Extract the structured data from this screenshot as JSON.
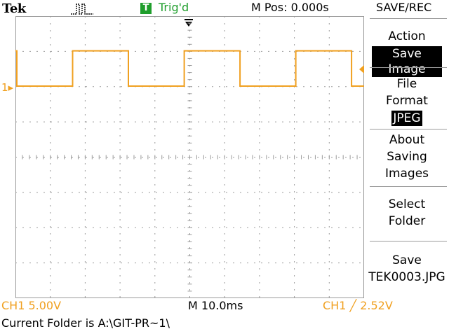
{
  "header": {
    "brand": "Tek",
    "acquisition_icon": "acquire-pulse-icon",
    "trigger_badge": "T",
    "trigger_status": "Trig'd",
    "horizontal_position": "M Pos: 0.000s",
    "menu_title": "SAVE/REC"
  },
  "colors": {
    "channel1": "#f0a020",
    "trigger_ok": "#1f9e2c",
    "graticule": "#9a9a9a",
    "background": "#ffffff"
  },
  "display": {
    "ch1_marker": "1",
    "trigger_position_icon": "trigger-position-arrow-icon",
    "trigger_level_icon": "trigger-level-arrow-icon",
    "waveform": {
      "type": "square",
      "cycles_visible": 3,
      "high_level_div": 1.0,
      "low_level_div": 0,
      "period_div": 3.2,
      "duty_cycle": 0.5
    }
  },
  "side_menu": [
    {
      "label": [
        "Action"
      ],
      "value": "Save Image"
    },
    {
      "label": [
        "File",
        "Format"
      ],
      "value": "JPEG"
    },
    {
      "label": [
        "About",
        "Saving",
        "Images"
      ]
    },
    {
      "label": [
        "Select",
        "Folder"
      ]
    },
    {
      "label": [
        "Save",
        "TEK0003.JPG"
      ]
    }
  ],
  "footer": {
    "ch1_scale": "CH1  5.00V",
    "timebase": "M 10.0ms",
    "trigger_readout": "CH1 ╱ 2.52V",
    "status": "Current Folder is A:\\GIT-PR~1\\"
  }
}
